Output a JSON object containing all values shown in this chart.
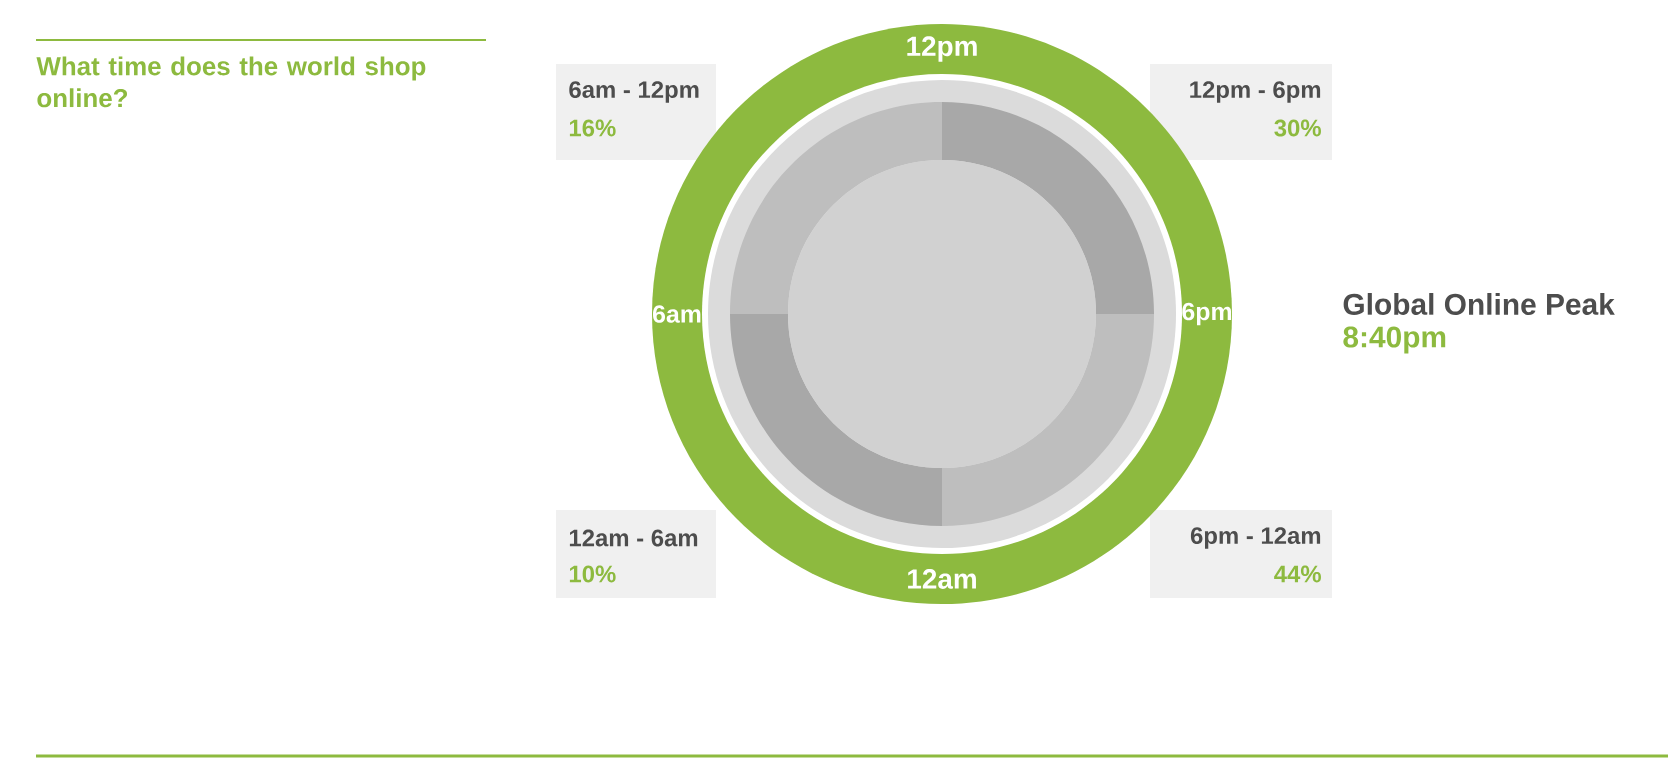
{
  "chart_data": {
    "type": "other",
    "title": "What time does the world shop online?",
    "categories": [
      "12pm - 6pm",
      "6pm - 12am",
      "12am - 6am",
      "6am - 12pm"
    ],
    "values": [
      30,
      44,
      10,
      16
    ],
    "value_labels": [
      "30%",
      "44%",
      "10%",
      "16%"
    ],
    "color": "#f0f0f0",
    "annotations": [
      "12pm",
      "6pm",
      "12am",
      "6am",
      "Global Online Peak",
      "8:40pm"
    ]
  }
}
